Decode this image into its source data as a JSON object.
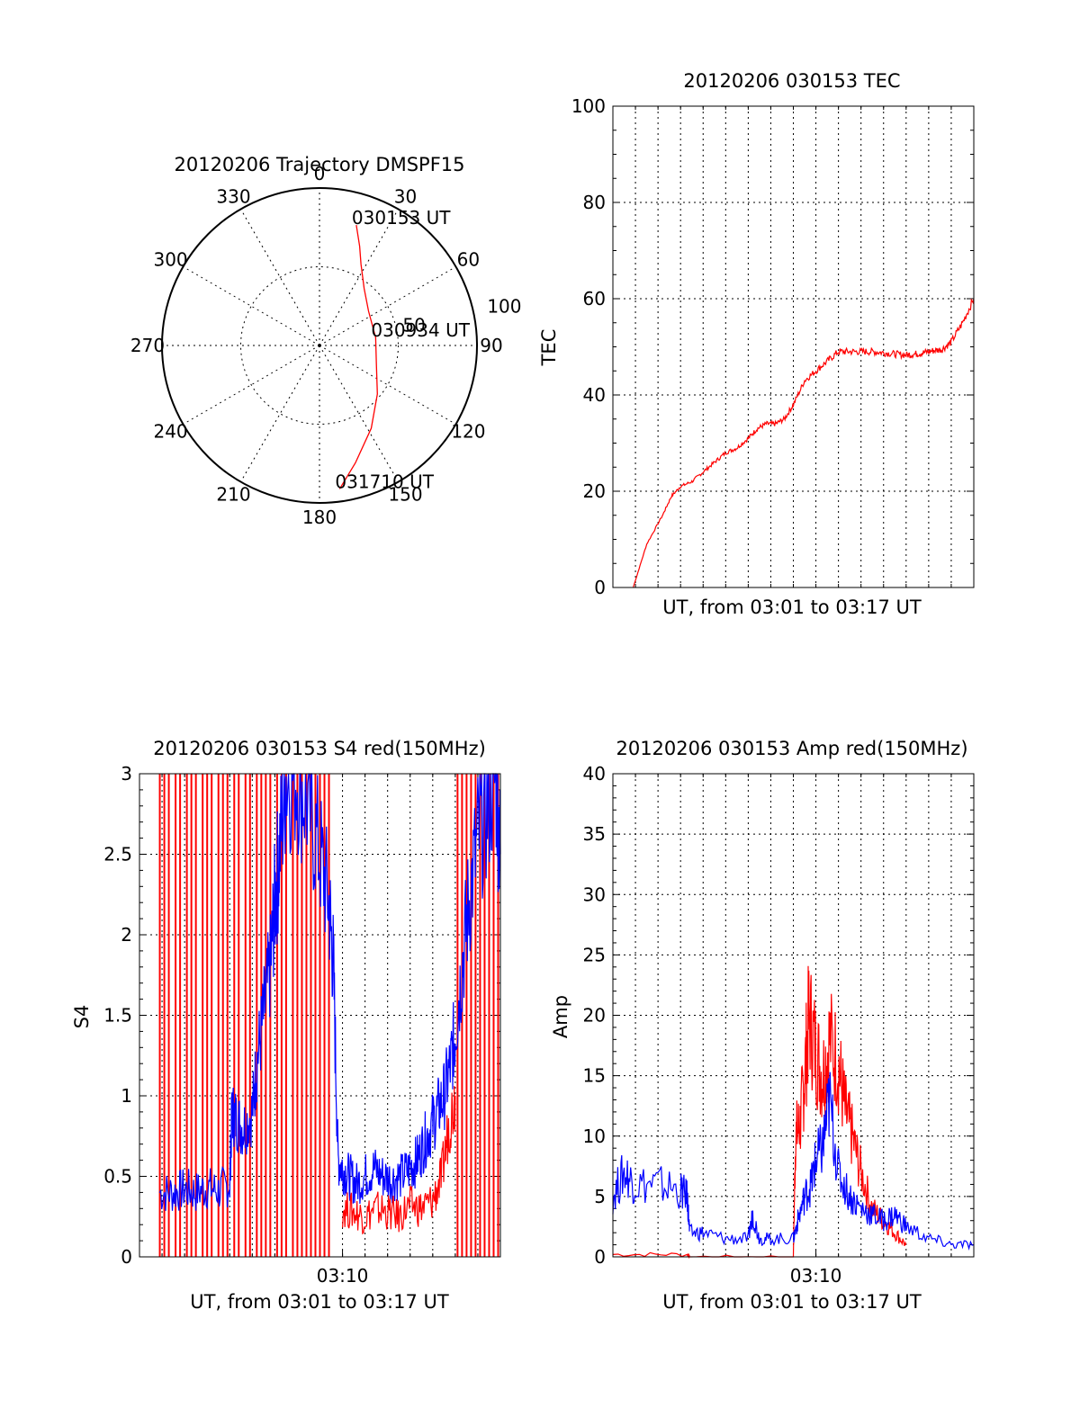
{
  "chart_data": [
    {
      "type": "polar",
      "title": "20120206 Trajectory DMSPF15",
      "angle_ticks": [
        "0",
        "30",
        "60",
        "90",
        "120",
        "150",
        "180",
        "210",
        "240",
        "270",
        "300",
        "330"
      ],
      "radius_ticks": [
        "50",
        "100"
      ],
      "rlim": [
        0,
        100
      ],
      "grid": true,
      "series": [
        {
          "color": "#ff0000",
          "points": [
            [
              17,
              80
            ],
            [
              22,
              68
            ],
            [
              27,
              58
            ],
            [
              38,
              46
            ],
            [
              55,
              38
            ],
            [
              82,
              36
            ],
            [
              108,
              38
            ],
            [
              130,
              48
            ],
            [
              148,
              62
            ],
            [
              163,
              78
            ],
            [
              172,
              92
            ]
          ]
        }
      ],
      "annotations": [
        {
          "text": "030153 UT",
          "azimuth": 17,
          "radius": 80
        },
        {
          "text": "030934 UT",
          "azimuth": 82,
          "radius": 36
        },
        {
          "text": "031710 UT",
          "azimuth": 172,
          "radius": 92
        }
      ]
    },
    {
      "type": "line",
      "title": "20120206 030153 TEC",
      "xlabel": "UT, from 03:01 to 03:17 UT",
      "ylabel": "TEC",
      "xlim": [
        0,
        16
      ],
      "ylim": [
        0,
        100
      ],
      "y_ticks": [
        "0",
        "20",
        "40",
        "60",
        "80",
        "100"
      ],
      "x_tick_labels": [],
      "grid": true,
      "series": [
        {
          "color": "#ff0000",
          "x": [
            0.9,
            1.5,
            2.2,
            2.6,
            3.0,
            3.5,
            4.0,
            4.5,
            5.0,
            5.5,
            6.0,
            6.4,
            6.8,
            7.2,
            7.6,
            8.0,
            8.5,
            9.0,
            9.5,
            10.0,
            10.5,
            11.0,
            11.5,
            12.0,
            12.5,
            13.0,
            13.4,
            13.8,
            14.2,
            14.6,
            15.0,
            15.5,
            16.0
          ],
          "y": [
            0,
            9,
            15,
            19,
            21,
            22,
            24,
            26,
            28,
            29,
            31,
            33,
            34,
            34,
            35,
            38,
            43,
            45,
            47,
            49,
            49,
            49,
            49,
            48.8,
            48.5,
            48.3,
            48.5,
            48.8,
            49.2,
            49.5,
            51,
            55,
            60
          ]
        }
      ]
    },
    {
      "type": "line",
      "title": "20120206 030153 S4 red(150MHz)",
      "xlabel": "UT, from 03:01 to 03:17 UT",
      "ylabel": "S4",
      "xlim": [
        0,
        16
      ],
      "ylim": [
        0,
        3
      ],
      "y_ticks": [
        "0",
        "0.5",
        "1",
        "1.5",
        "2",
        "2.5",
        "3"
      ],
      "x_tick_labels": [
        {
          "x": 9,
          "label": "03:10"
        }
      ],
      "grid": true,
      "red_spike_times": [
        0.9,
        1.1,
        1.3,
        1.6,
        1.8,
        2.1,
        2.3,
        2.5,
        2.8,
        3.0,
        3.2,
        3.5,
        3.7,
        3.9,
        4.2,
        4.4,
        4.7,
        4.9,
        5.2,
        5.4,
        5.6,
        5.8,
        6.1,
        6.3,
        6.5,
        6.8,
        7.0,
        7.2,
        7.4,
        7.6,
        7.8,
        8.0,
        8.2,
        8.4,
        14.1,
        14.3,
        14.5,
        14.7,
        14.9,
        15.1,
        15.3,
        15.5,
        15.7,
        15.9
      ],
      "series": [
        {
          "name": "",
          "color": "#0000ff",
          "x": [
            0.9,
            1.5,
            2.0,
            2.5,
            3.0,
            3.5,
            4.0,
            4.1,
            4.3,
            4.6,
            5.0,
            5.2,
            5.5,
            5.8,
            6.0,
            6.2,
            6.5,
            7.0,
            7.5,
            8.0,
            8.4,
            8.6,
            8.8,
            9.0,
            9.3,
            9.6,
            10.0,
            10.4,
            10.8,
            11.2,
            11.6,
            12.0,
            12.3,
            12.6,
            12.9,
            13.2,
            13.5,
            13.8,
            14.0,
            14.3,
            14.6,
            15.0,
            15.4,
            15.8,
            16.0
          ],
          "y": [
            0.4,
            0.4,
            0.42,
            0.4,
            0.43,
            0.41,
            0.45,
            0.9,
            0.85,
            0.8,
            0.9,
            1.2,
            1.5,
            1.8,
            2.2,
            2.5,
            3.0,
            3.0,
            2.8,
            2.5,
            2.2,
            1.8,
            0.6,
            0.55,
            0.5,
            0.45,
            0.5,
            0.55,
            0.5,
            0.48,
            0.5,
            0.55,
            0.6,
            0.7,
            0.8,
            0.9,
            1.0,
            1.2,
            1.4,
            1.8,
            2.2,
            2.6,
            2.8,
            3.0,
            2.5
          ]
        },
        {
          "name": "",
          "color": "#ff0000",
          "x": [
            9.0,
            9.5,
            10.0,
            10.5,
            11.0,
            11.5,
            12.0,
            12.5,
            13.0,
            13.4,
            13.7,
            14.0
          ],
          "y": [
            0.3,
            0.28,
            0.25,
            0.3,
            0.28,
            0.25,
            0.32,
            0.3,
            0.35,
            0.5,
            0.8,
            1.0
          ]
        }
      ]
    },
    {
      "type": "line",
      "title": "20120206 030153 Amp red(150MHz)",
      "xlabel": "UT, from 03:01 to 03:17 UT",
      "ylabel": "Amp",
      "xlim": [
        0,
        16
      ],
      "ylim": [
        0,
        40
      ],
      "y_ticks": [
        "0",
        "5",
        "10",
        "15",
        "20",
        "25",
        "30",
        "35",
        "40"
      ],
      "x_tick_labels": [
        {
          "x": 9,
          "label": "03:10"
        }
      ],
      "grid": true,
      "series": [
        {
          "name": "",
          "color": "#ff0000",
          "x": [
            0.0,
            3.3,
            3.4,
            8.0,
            8.1,
            8.3,
            8.5,
            8.7,
            9.0,
            9.3,
            9.6,
            10.0,
            10.3,
            10.6,
            11.0,
            11.5,
            12.0,
            12.5,
            13.0
          ],
          "y": [
            0.2,
            0.2,
            0,
            0,
            10,
            11,
            15,
            20,
            17,
            15,
            18,
            16,
            12,
            10,
            7,
            4,
            3,
            2,
            1
          ]
        },
        {
          "name": "",
          "color": "#0000ff",
          "x": [
            0.0,
            0.5,
            1.0,
            2.0,
            3.0,
            3.3,
            3.4,
            4.0,
            5.0,
            6.0,
            6.2,
            6.5,
            7.0,
            8.0,
            8.2,
            8.5,
            8.8,
            9.0,
            9.3,
            9.6,
            10.0,
            10.5,
            11.0,
            11.5,
            12.0,
            12.5,
            13.0,
            14.0,
            15.0,
            16.0
          ],
          "y": [
            5,
            7,
            6,
            6,
            5.5,
            5,
            2,
            2,
            1.5,
            1.5,
            3.5,
            1.5,
            1.5,
            1.5,
            3,
            5,
            6,
            8,
            9,
            13,
            7,
            5,
            4,
            3.5,
            3,
            3.5,
            2.5,
            1.5,
            1,
            1
          ]
        }
      ]
    }
  ]
}
